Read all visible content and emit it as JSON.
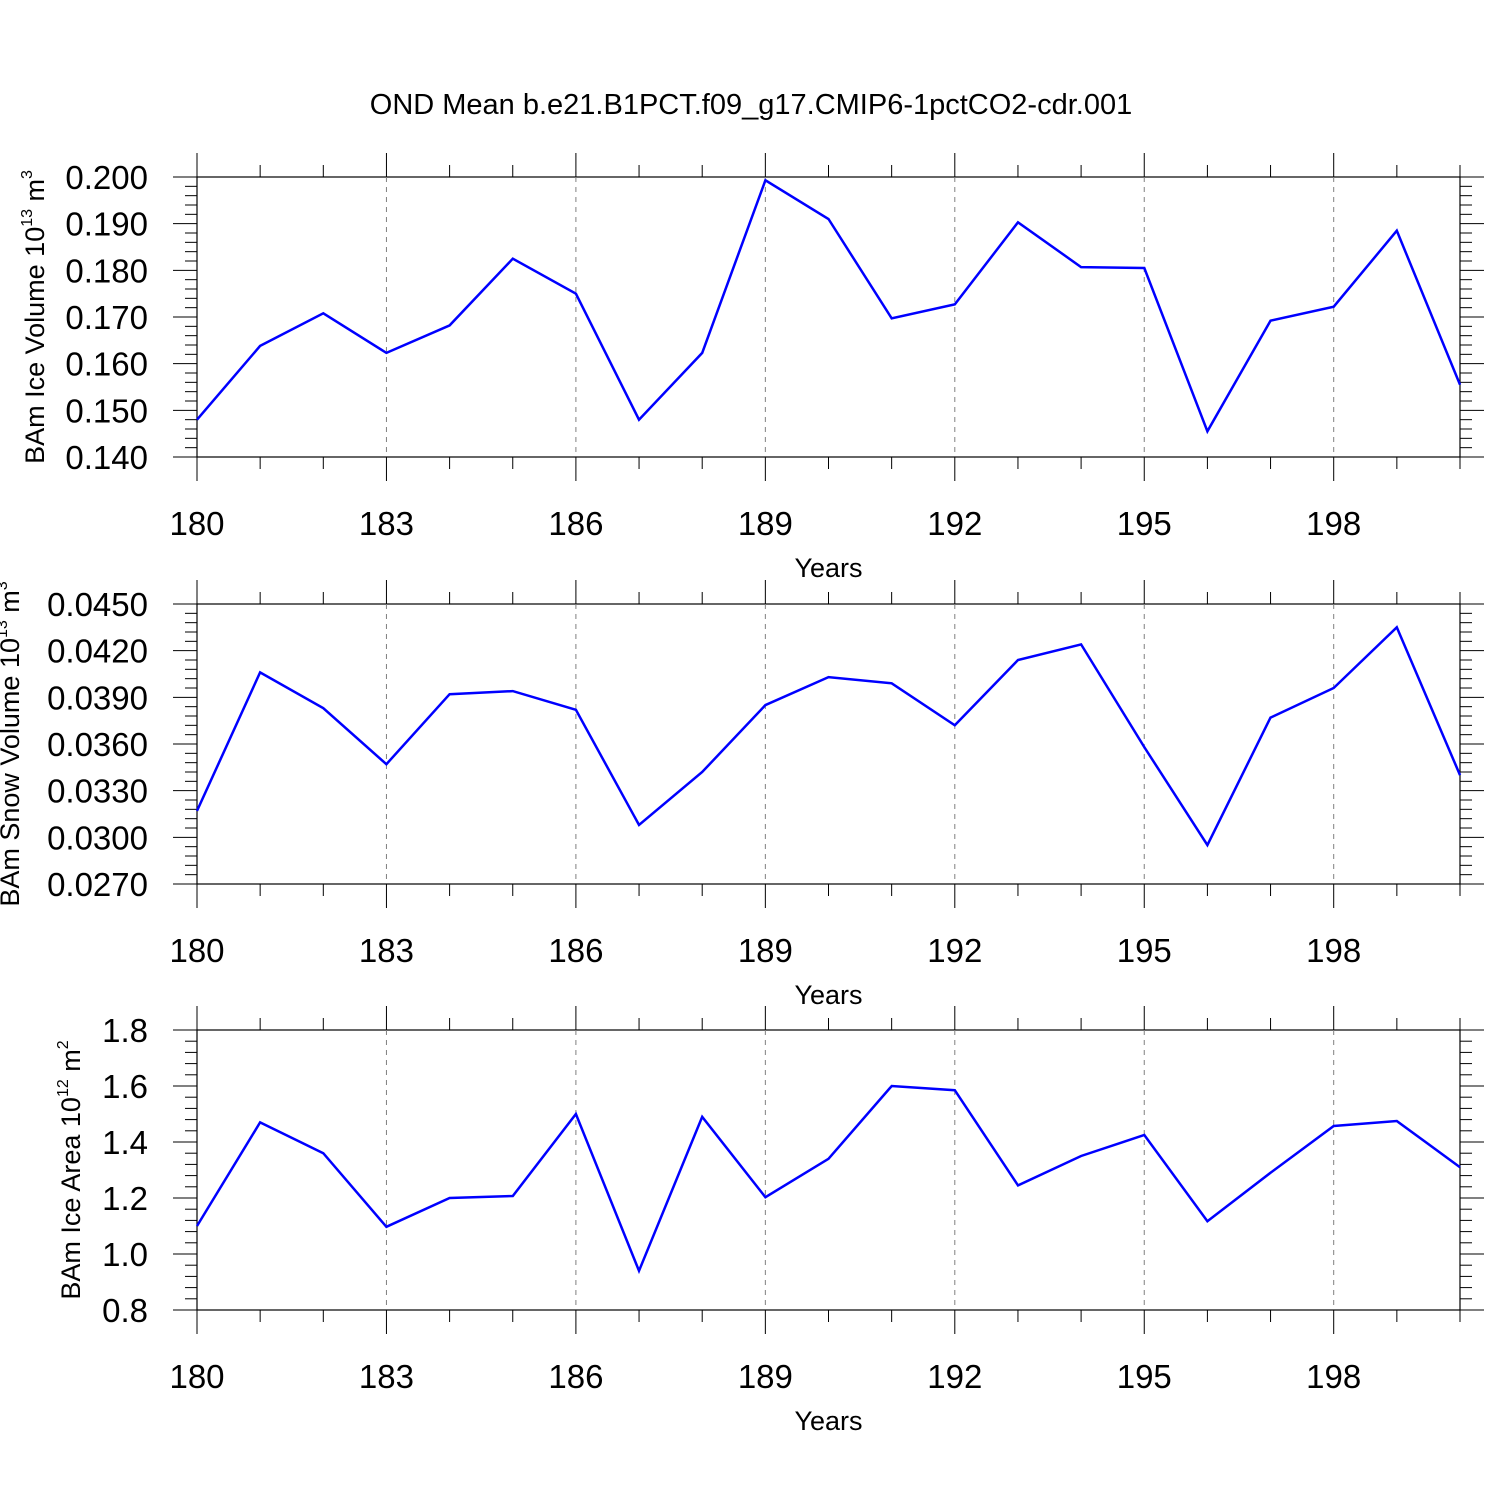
{
  "title": "OND Mean b.e21.B1PCT.f09_g17.CMIP6-1pctCO2-cdr.001",
  "colors": {
    "series": "#0000ff",
    "axis": "#000000",
    "grid": "#808080",
    "background": "#ffffff"
  },
  "chart_data": [
    {
      "type": "line",
      "title": "OND Mean b.e21.B1PCT.f09_g17.CMIP6-1pctCO2-cdr.001",
      "xlabel": "Years",
      "ylabel_main": "BAm Ice Volume 10",
      "ylabel_exp": "13",
      "ylabel_unit": "m",
      "ylabel_unit_exp": "3",
      "x": [
        180,
        181,
        182,
        183,
        184,
        185,
        186,
        187,
        188,
        189,
        190,
        191,
        192,
        193,
        194,
        195,
        196,
        197,
        198,
        199,
        200
      ],
      "values": [
        0.148,
        0.1638,
        0.1708,
        0.1623,
        0.1682,
        0.1825,
        0.175,
        0.148,
        0.1623,
        0.1993,
        0.191,
        0.1697,
        0.1727,
        0.1903,
        0.1807,
        0.1805,
        0.1455,
        0.1692,
        0.1722,
        0.1885,
        0.1555
      ],
      "xlim": [
        180,
        200
      ],
      "ylim": [
        0.14,
        0.2
      ],
      "xticks": [
        "180",
        "183",
        "186",
        "189",
        "192",
        "195",
        "198"
      ],
      "yticks": [
        "0.140",
        "0.150",
        "0.160",
        "0.170",
        "0.180",
        "0.190",
        "0.200"
      ],
      "grid": "vertical-dashed"
    },
    {
      "type": "line",
      "xlabel": "Years",
      "ylabel_main": "BAm Snow Volume 10",
      "ylabel_exp": "13",
      "ylabel_unit": "m",
      "ylabel_unit_exp": "3",
      "x": [
        180,
        181,
        182,
        183,
        184,
        185,
        186,
        187,
        188,
        189,
        190,
        191,
        192,
        193,
        194,
        195,
        196,
        197,
        198,
        199,
        200
      ],
      "values": [
        0.0317,
        0.0406,
        0.0383,
        0.0347,
        0.0392,
        0.0394,
        0.0382,
        0.0308,
        0.0342,
        0.0385,
        0.0403,
        0.0399,
        0.0372,
        0.0414,
        0.0424,
        0.0358,
        0.0295,
        0.0377,
        0.0396,
        0.0435,
        0.034
      ],
      "xlim": [
        180,
        200
      ],
      "ylim": [
        0.027,
        0.045
      ],
      "xticks": [
        "180",
        "183",
        "186",
        "189",
        "192",
        "195",
        "198"
      ],
      "yticks": [
        "0.0270",
        "0.0300",
        "0.0330",
        "0.0360",
        "0.0390",
        "0.0420",
        "0.0450"
      ],
      "grid": "vertical-dashed"
    },
    {
      "type": "line",
      "xlabel": "Years",
      "ylabel_main": "BAm Ice Area 10",
      "ylabel_exp": "12",
      "ylabel_unit": "m",
      "ylabel_unit_exp": "2",
      "x": [
        180,
        181,
        182,
        183,
        184,
        185,
        186,
        187,
        188,
        189,
        190,
        191,
        192,
        193,
        194,
        195,
        196,
        197,
        198,
        199,
        200
      ],
      "values": [
        1.1,
        1.47,
        1.36,
        1.097,
        1.2,
        1.207,
        1.5,
        0.94,
        1.49,
        1.203,
        1.34,
        1.6,
        1.585,
        1.245,
        1.35,
        1.425,
        1.117,
        1.29,
        1.457,
        1.475,
        1.31
      ],
      "xlim": [
        180,
        200
      ],
      "ylim": [
        0.8,
        1.8
      ],
      "xticks": [
        "180",
        "183",
        "186",
        "189",
        "192",
        "195",
        "198"
      ],
      "yticks": [
        "0.8",
        "1.0",
        "1.2",
        "1.4",
        "1.6",
        "1.8"
      ],
      "grid": "vertical-dashed"
    }
  ]
}
